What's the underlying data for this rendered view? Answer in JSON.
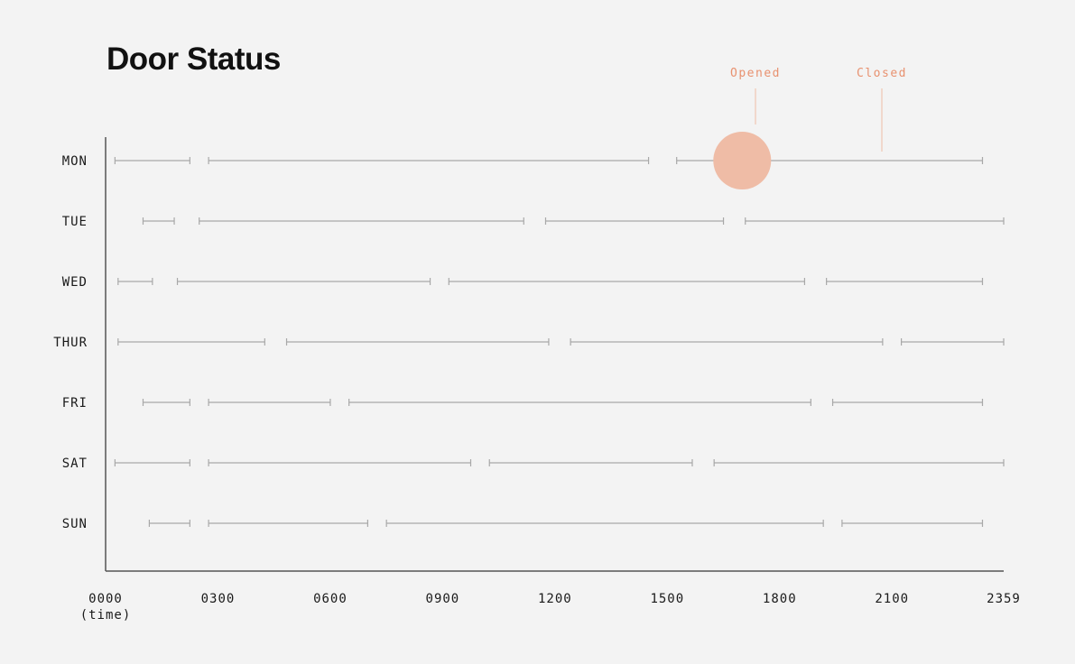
{
  "title": "Door Status",
  "chart_data": {
    "type": "gantt",
    "title": "Door Status",
    "xlabel": "(time)",
    "x_ticks": [
      "0000",
      "0300",
      "0600",
      "0900",
      "1200",
      "1500",
      "1800",
      "2100",
      "2359"
    ],
    "xlim": [
      "0000",
      "2359"
    ],
    "legend": {
      "opened_label": "Opened",
      "closed_label": "Closed"
    },
    "colors": {
      "accent": "#e8916f",
      "marker": "#efbca6",
      "segment": "#a8a8a8",
      "axis": "#555555"
    },
    "highlight": {
      "day": "MON",
      "time": "1700",
      "state": "Opened"
    },
    "days": [
      {
        "name": "MON",
        "segments": [
          [
            "0015",
            "0215"
          ],
          [
            "0245",
            "1430"
          ],
          [
            "1515",
            "1630"
          ],
          [
            "1705",
            "2325"
          ]
        ]
      },
      {
        "name": "TUE",
        "segments": [
          [
            "0100",
            "0150"
          ],
          [
            "0230",
            "1110"
          ],
          [
            "1145",
            "1630"
          ],
          [
            "1705",
            "2359"
          ]
        ]
      },
      {
        "name": "WED",
        "segments": [
          [
            "0020",
            "0115"
          ],
          [
            "0155",
            "0840"
          ],
          [
            "0910",
            "1840"
          ],
          [
            "1915",
            "2325"
          ]
        ]
      },
      {
        "name": "THUR",
        "segments": [
          [
            "0020",
            "0415"
          ],
          [
            "0450",
            "1150"
          ],
          [
            "1225",
            "2045"
          ],
          [
            "2115",
            "2359"
          ]
        ]
      },
      {
        "name": "FRI",
        "segments": [
          [
            "0100",
            "0215"
          ],
          [
            "0245",
            "0600"
          ],
          [
            "0630",
            "1850"
          ],
          [
            "1925",
            "2325"
          ]
        ]
      },
      {
        "name": "SAT",
        "segments": [
          [
            "0015",
            "0215"
          ],
          [
            "0245",
            "0945"
          ],
          [
            "1015",
            "1540"
          ],
          [
            "1615",
            "2359"
          ]
        ]
      },
      {
        "name": "SUN",
        "segments": [
          [
            "0110",
            "0215"
          ],
          [
            "0245",
            "0700"
          ],
          [
            "0730",
            "1910"
          ],
          [
            "1940",
            "2325"
          ]
        ]
      }
    ]
  }
}
